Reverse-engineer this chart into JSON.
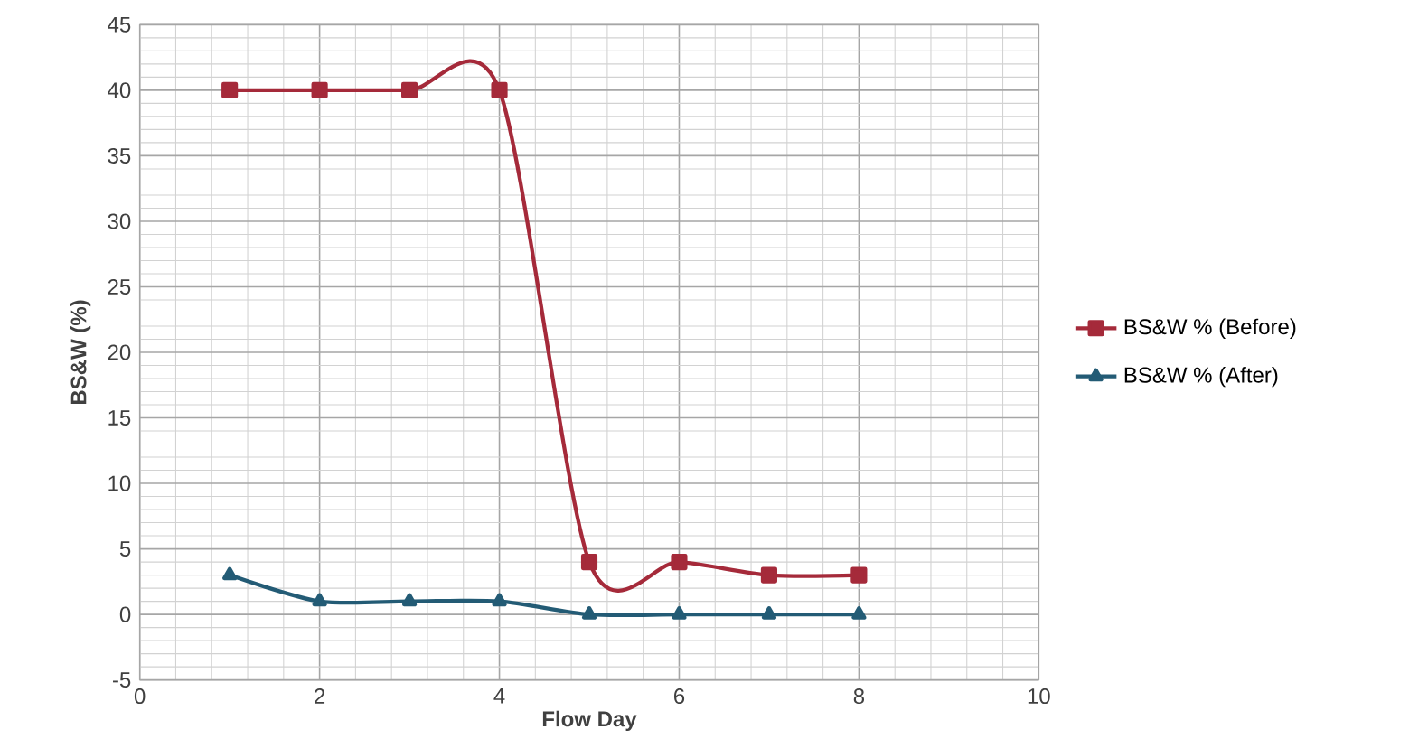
{
  "chart_data": {
    "type": "line",
    "xlabel": "Flow Day",
    "ylabel": "BS&W (%)",
    "x": [
      1,
      2,
      3,
      4,
      5,
      6,
      7,
      8
    ],
    "series": [
      {
        "name": "BS&W % (Before)",
        "color": "#a52a3a",
        "marker": "square",
        "values": [
          40,
          40,
          40,
          40,
          4,
          4,
          3,
          3
        ]
      },
      {
        "name": "BS&W % (After)",
        "color": "#235b75",
        "marker": "triangle",
        "values": [
          3,
          1,
          1,
          1,
          0,
          0,
          0,
          0
        ]
      }
    ],
    "xlim": [
      0,
      10
    ],
    "xticks": [
      0,
      2,
      4,
      6,
      8,
      10
    ],
    "ylim": [
      -5,
      45
    ],
    "yticks": [
      -5,
      0,
      5,
      10,
      15,
      20,
      25,
      30,
      35,
      40,
      45
    ],
    "grid": true,
    "legend": "right",
    "line_style": "solid"
  }
}
